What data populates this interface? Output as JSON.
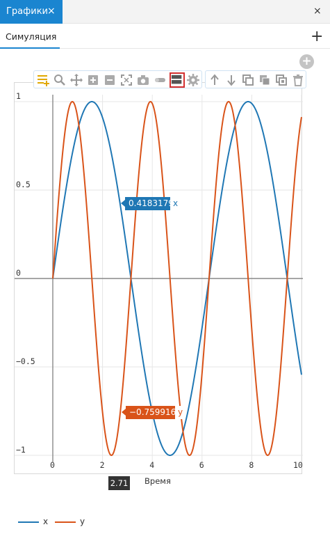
{
  "window": {
    "tab_label": "Графики",
    "tab_close": "×",
    "close": "×"
  },
  "subtabs": {
    "items": [
      {
        "label": "Симуляция"
      }
    ],
    "add": "+"
  },
  "toolbar": {
    "add_plot": "+",
    "buttons": [
      {
        "icon": "add-series-icon"
      },
      {
        "icon": "zoom-icon"
      },
      {
        "icon": "pan-icon"
      },
      {
        "icon": "zoom-in-icon"
      },
      {
        "icon": "zoom-out-icon"
      },
      {
        "icon": "autoscale-icon"
      },
      {
        "icon": "camera-icon"
      },
      {
        "icon": "eraser-icon"
      },
      {
        "icon": "split-view-icon"
      },
      {
        "icon": "settings-icon"
      },
      {
        "icon": "arrow-up-icon"
      },
      {
        "icon": "arrow-down-icon"
      },
      {
        "icon": "copy-icon"
      },
      {
        "icon": "copy-filled-icon"
      },
      {
        "icon": "paste-icon"
      },
      {
        "icon": "trash-icon"
      }
    ]
  },
  "colors": {
    "x": "#1f77b4",
    "y": "#d95319",
    "accent": "#1a85d0",
    "active_button_border": "#d32f2f"
  },
  "chart_data": {
    "type": "line",
    "xlabel": "Время",
    "ylabel": "",
    "xlim": [
      0,
      10
    ],
    "ylim": [
      -1,
      1
    ],
    "x_ticks": [
      "0",
      "2",
      "4",
      "6",
      "8",
      "10"
    ],
    "y_ticks": [
      "1",
      "0.5",
      "0",
      "−0.5",
      "−1"
    ],
    "grid": true,
    "legend": "bottom-left",
    "series": [
      {
        "name": "x",
        "function": "sin(t)",
        "color": "#1f77b4"
      },
      {
        "name": "y",
        "function": "sin(2t)",
        "color": "#d95319"
      }
    ],
    "cursor": {
      "x": "2.71",
      "readouts": [
        {
          "series": "x",
          "value": "0.4183179"
        },
        {
          "series": "y",
          "value": "−0.7599169"
        }
      ]
    }
  }
}
